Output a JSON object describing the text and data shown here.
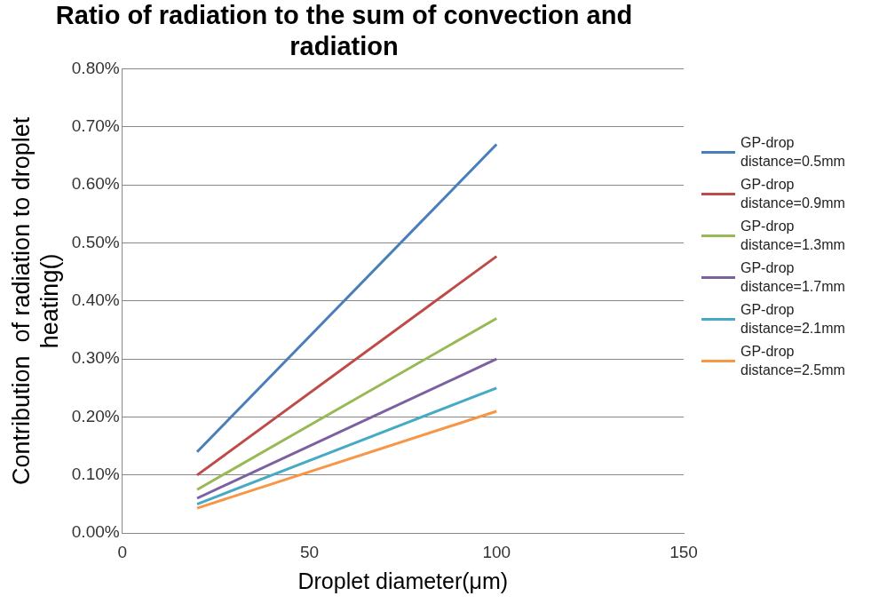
{
  "chart_data": {
    "type": "line",
    "title": "Ratio of radiation to the sum of convection and radiation",
    "xlabel": "Droplet diameter(μm)",
    "ylabel": "Contribution  of radiation to droplet heating()",
    "x": [
      20,
      100
    ],
    "series": [
      {
        "name": "GP-drop distance=0.5mm",
        "color": "#4a7ebb",
        "values": [
          0.14,
          0.67
        ]
      },
      {
        "name": "GP-drop distance=0.9mm",
        "color": "#be4b48",
        "values": [
          0.1,
          0.477
        ]
      },
      {
        "name": "GP-drop distance=1.3mm",
        "color": "#98b954",
        "values": [
          0.075,
          0.37
        ]
      },
      {
        "name": "GP-drop distance=1.7mm",
        "color": "#7d60a0",
        "values": [
          0.06,
          0.3
        ]
      },
      {
        "name": "GP-drop distance=2.1mm",
        "color": "#46aac5",
        "values": [
          0.05,
          0.25
        ]
      },
      {
        "name": "GP-drop distance=2.5mm",
        "color": "#f79646",
        "values": [
          0.043,
          0.21
        ]
      }
    ],
    "xlim": [
      0,
      150
    ],
    "xticks": [
      0,
      50,
      100,
      150
    ],
    "ylim": [
      0,
      0.8
    ],
    "yticks": [
      {
        "value": 0,
        "label": "0.00%"
      },
      {
        "value": 0.1,
        "label": "0.10%"
      },
      {
        "value": 0.2,
        "label": "0.20%"
      },
      {
        "value": 0.3,
        "label": "0.30%"
      },
      {
        "value": 0.4,
        "label": "0.40%"
      },
      {
        "value": 0.5,
        "label": "0.50%"
      },
      {
        "value": 0.6,
        "label": "0.60%"
      },
      {
        "value": 0.7,
        "label": "0.70%"
      },
      {
        "value": 0.8,
        "label": "0.80%"
      }
    ],
    "grid": "y",
    "legend": "right",
    "marker": "none",
    "line_style": "solid"
  }
}
